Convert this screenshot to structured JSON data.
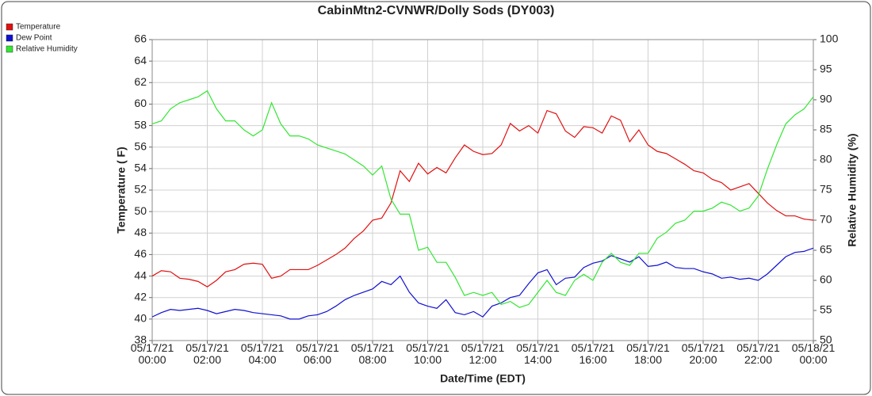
{
  "chart_data": {
    "type": "line",
    "title": "CabinMtn2-CVNWR/Dolly Sods (DY003)",
    "x_label": "Date/Time (EDT)",
    "y_label": "Temperature ( F)",
    "y2_label": "Relative Humidity (%)",
    "xlim": [
      "05/17/21 00:00",
      "05/18/21 00:00"
    ],
    "xticks": [
      "05/17/21 00:00",
      "05/17/21 02:00",
      "05/17/21 04:00",
      "05/17/21 06:00",
      "05/17/21 08:00",
      "05/17/21 10:00",
      "05/17/21 12:00",
      "05/17/21 14:00",
      "05/17/21 16:00",
      "05/17/21 18:00",
      "05/17/21 20:00",
      "05/17/21 22:00",
      "05/18/21 00:00"
    ],
    "ylim": [
      38,
      66
    ],
    "yticks": [
      38,
      40,
      42,
      44,
      46,
      48,
      50,
      52,
      54,
      56,
      58,
      60,
      62,
      64,
      66
    ],
    "y2lim": [
      50,
      100
    ],
    "y2ticks": [
      50,
      55,
      60,
      65,
      70,
      75,
      80,
      85,
      90,
      95,
      100
    ],
    "grid": true,
    "legend": "top-left",
    "x": [
      "05/17/21 00:00",
      "05/17/21 00:20",
      "05/17/21 00:40",
      "05/17/21 01:00",
      "05/17/21 01:20",
      "05/17/21 01:40",
      "05/17/21 02:00",
      "05/17/21 02:20",
      "05/17/21 02:40",
      "05/17/21 03:00",
      "05/17/21 03:20",
      "05/17/21 03:40",
      "05/17/21 04:00",
      "05/17/21 04:20",
      "05/17/21 04:40",
      "05/17/21 05:00",
      "05/17/21 05:20",
      "05/17/21 05:40",
      "05/17/21 06:00",
      "05/17/21 06:20",
      "05/17/21 06:40",
      "05/17/21 07:00",
      "05/17/21 07:20",
      "05/17/21 07:40",
      "05/17/21 08:00",
      "05/17/21 08:20",
      "05/17/21 08:40",
      "05/17/21 09:00",
      "05/17/21 09:20",
      "05/17/21 09:40",
      "05/17/21 10:00",
      "05/17/21 10:20",
      "05/17/21 10:40",
      "05/17/21 11:00",
      "05/17/21 11:20",
      "05/17/21 11:40",
      "05/17/21 12:00",
      "05/17/21 12:20",
      "05/17/21 12:40",
      "05/17/21 13:00",
      "05/17/21 13:20",
      "05/17/21 13:40",
      "05/17/21 14:00",
      "05/17/21 14:20",
      "05/17/21 14:40",
      "05/17/21 15:00",
      "05/17/21 15:20",
      "05/17/21 15:40",
      "05/17/21 16:00",
      "05/17/21 16:20",
      "05/17/21 16:40",
      "05/17/21 17:00",
      "05/17/21 17:20",
      "05/17/21 17:40",
      "05/17/21 18:00",
      "05/17/21 18:20",
      "05/17/21 18:40",
      "05/17/21 19:00",
      "05/17/21 19:20",
      "05/17/21 19:40",
      "05/17/21 20:00",
      "05/17/21 20:20",
      "05/17/21 20:40",
      "05/17/21 21:00",
      "05/17/21 21:20",
      "05/17/21 21:40",
      "05/17/21 22:00",
      "05/17/21 22:20",
      "05/17/21 22:40",
      "05/17/21 23:00",
      "05/17/21 23:20",
      "05/17/21 23:40",
      "05/18/21 00:00"
    ],
    "series": [
      {
        "name": "Temperature",
        "color": "#e01010",
        "values": [
          44.0,
          44.5,
          44.4,
          43.8,
          43.7,
          43.5,
          43.0,
          43.6,
          44.4,
          44.6,
          45.1,
          45.2,
          45.1,
          43.8,
          44.0,
          44.6,
          44.6,
          44.6,
          45.0,
          45.5,
          46.0,
          46.6,
          47.5,
          48.2,
          49.2,
          49.4,
          50.8,
          53.8,
          52.8,
          54.5,
          53.5,
          54.1,
          53.6,
          55.0,
          56.2,
          55.6,
          55.3,
          55.4,
          56.2,
          58.2,
          57.5,
          58.0,
          57.3,
          59.4,
          59.1,
          57.5,
          56.9,
          57.9,
          57.8,
          57.3,
          58.9,
          58.5,
          56.5,
          57.6,
          56.2,
          55.6,
          55.4,
          54.9,
          54.4,
          53.8,
          53.6,
          53.0,
          52.7,
          52.0,
          52.3,
          52.6,
          51.7,
          50.8,
          50.1,
          49.6,
          49.6,
          49.3,
          49.2
        ]
      },
      {
        "name": "Dew Point",
        "color": "#1010d0",
        "values": [
          40.2,
          40.6,
          40.9,
          40.8,
          40.9,
          41.0,
          40.8,
          40.5,
          40.7,
          40.9,
          40.8,
          40.6,
          40.5,
          40.4,
          40.3,
          40.0,
          40.0,
          40.3,
          40.4,
          40.7,
          41.2,
          41.8,
          42.2,
          42.5,
          42.8,
          43.5,
          43.2,
          44.0,
          42.5,
          41.5,
          41.2,
          41.0,
          41.8,
          40.6,
          40.4,
          40.7,
          40.2,
          41.2,
          41.5,
          42.0,
          42.2,
          43.3,
          44.3,
          44.6,
          43.2,
          43.8,
          43.9,
          44.8,
          45.2,
          45.4,
          45.9,
          45.6,
          45.3,
          45.8,
          44.9,
          45.0,
          45.3,
          44.8,
          44.7,
          44.7,
          44.4,
          44.2,
          43.8,
          43.9,
          43.7,
          43.8,
          43.6,
          44.2,
          45.0,
          45.8,
          46.2,
          46.3,
          46.6
        ]
      },
      {
        "name": "Relative Humidity",
        "color": "#33e633",
        "axis": "y2",
        "values": [
          86,
          86.5,
          88.5,
          89.5,
          90,
          90.5,
          91.5,
          88.5,
          86.5,
          86.5,
          85,
          84,
          85,
          89.5,
          86,
          84,
          84,
          83.5,
          82.5,
          82,
          81.5,
          81,
          80,
          79,
          77.5,
          79,
          73.5,
          71,
          71,
          65,
          65.5,
          63,
          63,
          60.5,
          57.5,
          58,
          57.5,
          58,
          56,
          56.5,
          55.5,
          56,
          58,
          60,
          58,
          57.5,
          60,
          61,
          60,
          63,
          64.5,
          63,
          62.5,
          64.5,
          64.5,
          67,
          68,
          69.5,
          70,
          71.5,
          71.5,
          72,
          73,
          72.5,
          71.5,
          72,
          74,
          78.5,
          82.5,
          86,
          87.5,
          88.5,
          90.5
        ]
      }
    ]
  }
}
